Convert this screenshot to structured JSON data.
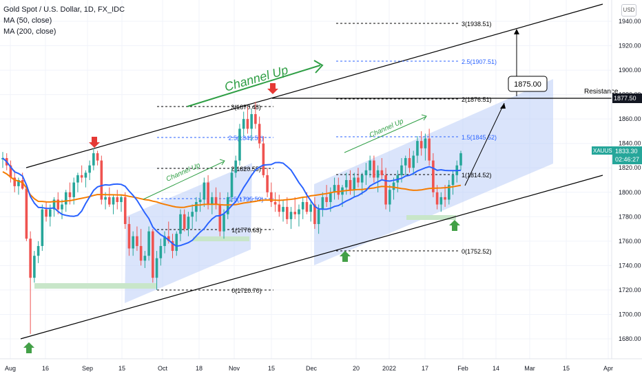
{
  "legend": {
    "title": "Gold Spot / U.S. Dollar, 1D, FX_IDC",
    "ma50": "MA (50, close)",
    "ma200": "MA (200, close)"
  },
  "currency_button": "USD",
  "colors": {
    "up": "#26a69a",
    "down": "#ef5350",
    "ma50": "#2962ff",
    "ma200": "#f57c00",
    "channel_fill": "#bbcdf7",
    "support_zone": "#c8e6c9",
    "arrow_up": "#43a047",
    "arrow_down": "#e53935",
    "annotation_green": "#2e9e44"
  },
  "chart_data": {
    "type": "candlestick",
    "ylim": [
      1670,
      1950
    ],
    "yticks": [
      "1940.00",
      "1920.00",
      "1900.00",
      "1880.00",
      "1860.00",
      "1840.00",
      "1820.00",
      "1800.00",
      "1780.00",
      "1760.00",
      "1740.00",
      "1720.00",
      "1700.00",
      "1680.00"
    ],
    "xticks": [
      "Aug",
      "16",
      "Sep",
      "15",
      "Oct",
      "18",
      "Nov",
      "15",
      "Dec",
      "20",
      "2022",
      "17",
      "Feb",
      "14",
      "Mar",
      "15",
      "Apr"
    ],
    "symbol_label": {
      "name": "XAUUSD",
      "price": "1833.30",
      "countdown": "02:46:27"
    },
    "resistance": {
      "label": "Resistance",
      "value": "1877.50"
    },
    "target": {
      "label": "1875.00"
    },
    "channel_labels": [
      "Channel Up",
      "Channel Up",
      "Channel Up"
    ],
    "fib_left": [
      "3(1870.48)",
      "2.5(1845.52)",
      "2(1820.55)",
      "1.5(1795.59)",
      "1(1770.63)",
      "0(1720.70)"
    ],
    "fib_right": [
      "3(1938.51)",
      "2.5(1907.51)",
      "2(1876.51)",
      "1.5(1845.52)",
      "1(1814.52)",
      "0(1752.52)"
    ],
    "candles_note": "approximate daily OHLC traced from the chart, late Jul 2021 to Feb 2022",
    "candles": [
      [
        1827,
        1833,
        1820,
        1828
      ],
      [
        1828,
        1832,
        1818,
        1822
      ],
      [
        1822,
        1826,
        1808,
        1812
      ],
      [
        1812,
        1818,
        1800,
        1805
      ],
      [
        1805,
        1812,
        1798,
        1810
      ],
      [
        1810,
        1816,
        1802,
        1803
      ],
      [
        1803,
        1806,
        1760,
        1762
      ],
      [
        1762,
        1768,
        1684,
        1730
      ],
      [
        1730,
        1752,
        1726,
        1748
      ],
      [
        1748,
        1760,
        1742,
        1756
      ],
      [
        1756,
        1790,
        1752,
        1786
      ],
      [
        1786,
        1792,
        1776,
        1780
      ],
      [
        1780,
        1790,
        1772,
        1786
      ],
      [
        1786,
        1796,
        1780,
        1794
      ],
      [
        1794,
        1800,
        1782,
        1786
      ],
      [
        1786,
        1794,
        1778,
        1790
      ],
      [
        1790,
        1802,
        1784,
        1800
      ],
      [
        1800,
        1808,
        1790,
        1796
      ],
      [
        1796,
        1812,
        1790,
        1808
      ],
      [
        1808,
        1816,
        1800,
        1814
      ],
      [
        1814,
        1822,
        1808,
        1812
      ],
      [
        1812,
        1818,
        1804,
        1816
      ],
      [
        1816,
        1826,
        1810,
        1822
      ],
      [
        1822,
        1836,
        1818,
        1832
      ],
      [
        1832,
        1834,
        1822,
        1826
      ],
      [
        1826,
        1830,
        1790,
        1794
      ],
      [
        1794,
        1800,
        1786,
        1796
      ],
      [
        1796,
        1804,
        1788,
        1790
      ],
      [
        1790,
        1798,
        1782,
        1796
      ],
      [
        1796,
        1802,
        1786,
        1792
      ],
      [
        1792,
        1798,
        1784,
        1796
      ],
      [
        1796,
        1800,
        1770,
        1774
      ],
      [
        1774,
        1780,
        1748,
        1754
      ],
      [
        1754,
        1768,
        1748,
        1764
      ],
      [
        1764,
        1772,
        1752,
        1756
      ],
      [
        1756,
        1770,
        1740,
        1744
      ],
      [
        1744,
        1752,
        1738,
        1748
      ],
      [
        1748,
        1772,
        1744,
        1768
      ],
      [
        1768,
        1770,
        1726,
        1730
      ],
      [
        1730,
        1752,
        1720,
        1746
      ],
      [
        1746,
        1762,
        1740,
        1756
      ],
      [
        1756,
        1768,
        1750,
        1764
      ],
      [
        1764,
        1776,
        1758,
        1760
      ],
      [
        1760,
        1766,
        1746,
        1752
      ],
      [
        1752,
        1768,
        1748,
        1766
      ],
      [
        1766,
        1786,
        1760,
        1782
      ],
      [
        1782,
        1786,
        1768,
        1770
      ],
      [
        1770,
        1784,
        1764,
        1780
      ],
      [
        1780,
        1790,
        1770,
        1784
      ],
      [
        1784,
        1796,
        1776,
        1792
      ],
      [
        1792,
        1800,
        1784,
        1794
      ],
      [
        1794,
        1812,
        1788,
        1808
      ],
      [
        1808,
        1814,
        1786,
        1790
      ],
      [
        1790,
        1800,
        1782,
        1796
      ],
      [
        1796,
        1804,
        1786,
        1790
      ],
      [
        1790,
        1800,
        1764,
        1768
      ],
      [
        1768,
        1786,
        1762,
        1782
      ],
      [
        1782,
        1800,
        1778,
        1796
      ],
      [
        1796,
        1820,
        1792,
        1816
      ],
      [
        1816,
        1830,
        1812,
        1826
      ],
      [
        1826,
        1856,
        1822,
        1852
      ],
      [
        1852,
        1866,
        1846,
        1860
      ],
      [
        1860,
        1870,
        1848,
        1852
      ],
      [
        1852,
        1868,
        1842,
        1864
      ],
      [
        1864,
        1874,
        1852,
        1856
      ],
      [
        1856,
        1862,
        1836,
        1840
      ],
      [
        1840,
        1846,
        1812,
        1814
      ],
      [
        1814,
        1820,
        1796,
        1800
      ],
      [
        1800,
        1808,
        1788,
        1792
      ],
      [
        1792,
        1800,
        1784,
        1790
      ],
      [
        1790,
        1798,
        1780,
        1784
      ],
      [
        1784,
        1794,
        1776,
        1788
      ],
      [
        1788,
        1796,
        1774,
        1778
      ],
      [
        1778,
        1788,
        1770,
        1784
      ],
      [
        1784,
        1796,
        1778,
        1782
      ],
      [
        1782,
        1790,
        1772,
        1786
      ],
      [
        1786,
        1796,
        1778,
        1792
      ],
      [
        1792,
        1800,
        1782,
        1784
      ],
      [
        1784,
        1794,
        1776,
        1790
      ],
      [
        1790,
        1796,
        1770,
        1774
      ],
      [
        1774,
        1790,
        1766,
        1786
      ],
      [
        1786,
        1800,
        1780,
        1796
      ],
      [
        1796,
        1806,
        1788,
        1792
      ],
      [
        1792,
        1804,
        1784,
        1800
      ],
      [
        1800,
        1812,
        1794,
        1806
      ],
      [
        1806,
        1812,
        1794,
        1798
      ],
      [
        1798,
        1806,
        1788,
        1804
      ],
      [
        1804,
        1816,
        1798,
        1810
      ],
      [
        1810,
        1818,
        1798,
        1802
      ],
      [
        1802,
        1816,
        1796,
        1812
      ],
      [
        1812,
        1820,
        1804,
        1808
      ],
      [
        1808,
        1816,
        1798,
        1814
      ],
      [
        1814,
        1824,
        1806,
        1818
      ],
      [
        1818,
        1830,
        1812,
        1826
      ],
      [
        1826,
        1830,
        1808,
        1812
      ],
      [
        1812,
        1822,
        1800,
        1818
      ],
      [
        1818,
        1828,
        1810,
        1814
      ],
      [
        1814,
        1820,
        1786,
        1790
      ],
      [
        1790,
        1806,
        1784,
        1802
      ],
      [
        1802,
        1812,
        1794,
        1808
      ],
      [
        1808,
        1818,
        1800,
        1814
      ],
      [
        1814,
        1828,
        1808,
        1822
      ],
      [
        1822,
        1830,
        1814,
        1828
      ],
      [
        1828,
        1836,
        1816,
        1820
      ],
      [
        1820,
        1834,
        1814,
        1830
      ],
      [
        1830,
        1846,
        1824,
        1842
      ],
      [
        1842,
        1850,
        1830,
        1836
      ],
      [
        1836,
        1848,
        1826,
        1844
      ],
      [
        1844,
        1852,
        1822,
        1826
      ],
      [
        1826,
        1832,
        1796,
        1800
      ],
      [
        1800,
        1806,
        1786,
        1790
      ],
      [
        1790,
        1800,
        1784,
        1796
      ],
      [
        1796,
        1806,
        1788,
        1794
      ],
      [
        1794,
        1810,
        1790,
        1806
      ],
      [
        1806,
        1818,
        1798,
        1814
      ],
      [
        1814,
        1826,
        1808,
        1822
      ],
      [
        1822,
        1834,
        1818,
        1832
      ]
    ]
  }
}
